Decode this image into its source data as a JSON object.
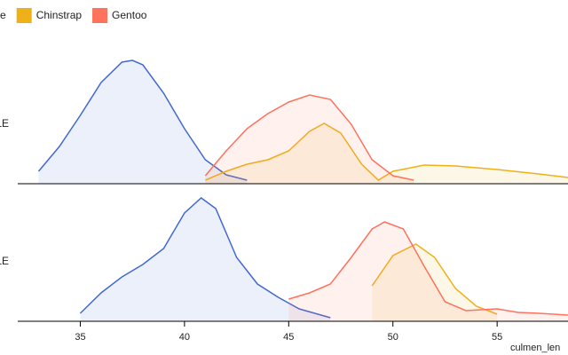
{
  "chart_data": {
    "type": "area",
    "x_label": "culmen_len",
    "xlim": [
      32,
      58.4
    ],
    "xticks": [
      35,
      40,
      45,
      50,
      55
    ],
    "ylim": [
      0,
      0.16
    ],
    "series": [
      {
        "name": "e",
        "color": "#4269d0"
      },
      {
        "name": "Chinstrap",
        "color": "#efb118"
      },
      {
        "name": "Gentoo",
        "color": "#ff725c"
      }
    ],
    "facets": [
      {
        "label": "LE",
        "series": [
          {
            "x": [
              33,
              34,
              35,
              36,
              37,
              37.5,
              38,
              39,
              40,
              41,
              42,
              43
            ],
            "values": [
              0.014,
              0.042,
              0.077,
              0.114,
              0.137,
              0.139,
              0.134,
              0.102,
              0.062,
              0.027,
              0.01,
              0.004
            ]
          },
          {
            "x": [
              41,
              42,
              43,
              44,
              45,
              46,
              46.7,
              47.5,
              48.5,
              49.3,
              50,
              51.5,
              53,
              55,
              57,
              58.4
            ],
            "values": [
              0.004,
              0.014,
              0.022,
              0.027,
              0.037,
              0.059,
              0.068,
              0.057,
              0.022,
              0.004,
              0.014,
              0.021,
              0.02,
              0.016,
              0.011,
              0.007
            ]
          },
          {
            "x": [
              41,
              42,
              43,
              44,
              45,
              46,
              47,
              48,
              49,
              50,
              51
            ],
            "values": [
              0.009,
              0.037,
              0.062,
              0.079,
              0.092,
              0.1,
              0.095,
              0.067,
              0.027,
              0.009,
              0.004
            ]
          }
        ]
      },
      {
        "label": "LE",
        "series": [
          {
            "x": [
              35,
              36,
              37,
              38,
              39,
              40,
              40.8,
              41.5,
              42.5,
              43.5,
              44.5,
              45.5,
              47
            ],
            "values": [
              0.009,
              0.032,
              0.05,
              0.064,
              0.082,
              0.122,
              0.139,
              0.127,
              0.072,
              0.042,
              0.027,
              0.014,
              0.004
            ]
          },
          {
            "x": [
              49,
              50,
              51.1,
              52,
              53,
              54,
              55
            ],
            "values": [
              0.04,
              0.074,
              0.087,
              0.072,
              0.037,
              0.017,
              0.008
            ]
          },
          {
            "x": [
              45,
              46,
              47,
              48,
              49,
              49.6,
              50.5,
              51.5,
              52.5,
              53.5,
              55,
              56,
              57,
              58.4
            ],
            "values": [
              0.025,
              0.032,
              0.042,
              0.072,
              0.104,
              0.112,
              0.104,
              0.062,
              0.022,
              0.012,
              0.014,
              0.01,
              0.009,
              0.007
            ]
          }
        ]
      }
    ]
  }
}
